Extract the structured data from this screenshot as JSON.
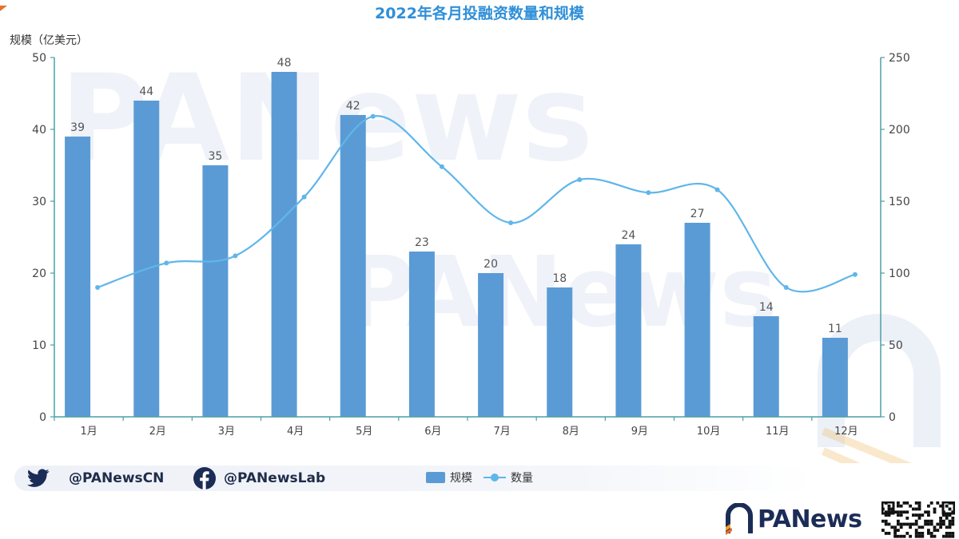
{
  "chart_data": {
    "type": "bar+line",
    "title": "2022年各月投融资数量和规模",
    "categories": [
      "1月",
      "2月",
      "3月",
      "4月",
      "5月",
      "6月",
      "7月",
      "8月",
      "9月",
      "10月",
      "11月",
      "12月"
    ],
    "series": [
      {
        "name": "规模",
        "type": "bar",
        "axis": "left",
        "values": [
          39,
          44,
          35,
          48,
          42,
          23,
          20,
          18,
          24,
          27,
          14,
          11
        ]
      },
      {
        "name": "数量",
        "type": "line",
        "axis": "right",
        "values": [
          90,
          107,
          112,
          153,
          209,
          174,
          135,
          165,
          156,
          158,
          90,
          99
        ]
      }
    ],
    "ylabel_left": "规模（亿美元）",
    "ylim_left": [
      0,
      50
    ],
    "yticks_left": [
      0,
      10,
      20,
      30,
      40,
      50
    ],
    "ylim_right": [
      0,
      250
    ],
    "yticks_right": [
      0,
      50,
      100,
      150,
      200,
      250
    ],
    "legend": "bottom-center",
    "colors": {
      "bar": "#5b9bd5",
      "line": "#5fb6ea",
      "axis": "#4a9fa6",
      "title": "#2f8fd8"
    }
  },
  "watermark": "PANews",
  "footer": {
    "twitter_handle": "@PANewsCN",
    "facebook_handle": "@PANewsLab",
    "brand": "PANews"
  }
}
